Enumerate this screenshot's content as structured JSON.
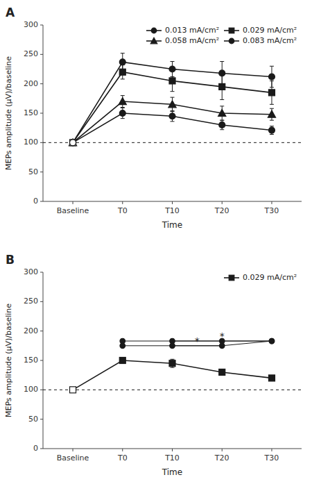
{
  "chart_data": [
    {
      "type": "line",
      "title": "A",
      "categories": [
        "Baseline",
        "T0",
        "T10",
        "T20",
        "T30"
      ],
      "series": [
        {
          "name": "0.013 mA/cm²",
          "values": [
            100,
            237,
            225,
            218,
            212
          ],
          "errors": [
            0,
            15,
            13,
            20,
            18
          ],
          "marker": "circle"
        },
        {
          "name": "0.029 mA/cm²",
          "values": [
            100,
            220,
            205,
            195,
            185
          ],
          "errors": [
            0,
            12,
            18,
            22,
            20
          ],
          "marker": "square"
        },
        {
          "name": "0.058 mA/cm²",
          "values": [
            100,
            170,
            165,
            150,
            148
          ],
          "errors": [
            0,
            10,
            12,
            12,
            10
          ],
          "marker": "triangle"
        },
        {
          "name": "0.083 mA/cm²",
          "values": [
            100,
            150,
            145,
            130,
            121
          ],
          "errors": [
            0,
            9,
            9,
            8,
            7
          ],
          "marker": "circle"
        }
      ],
      "xlabel": "Time",
      "ylabel": "MEPs amplitude (μV)/baseline",
      "ylim": [
        0,
        300
      ],
      "yticks": [
        0,
        50,
        100,
        150,
        200,
        250,
        300
      ],
      "reference_y": 100,
      "color": "#1a1a1a",
      "legend": "upper right",
      "grid": false
    },
    {
      "type": "line",
      "title": "B",
      "categories": [
        "Baseline",
        "T0",
        "T10",
        "T20",
        "T30"
      ],
      "series": [
        {
          "name": "0.029 mA/cm²",
          "values": [
            100,
            150,
            145,
            130,
            120
          ],
          "errors": [
            0,
            5,
            7,
            5,
            4
          ],
          "marker": "square"
        },
        {
          "values": [
            null,
            175,
            175,
            175,
            183
          ],
          "marker": "circle"
        },
        {
          "values": [
            null,
            183,
            183,
            183,
            183
          ],
          "marker": "circle"
        }
      ],
      "annotations": [
        {
          "text": "*",
          "x_start": "T10",
          "x_end": "T20",
          "y": 175
        },
        {
          "text": "*",
          "x_start": "T10",
          "x_end": "T30",
          "y": 183
        }
      ],
      "xlabel": "Time",
      "ylabel": "MEPs amplitude (μV)/baseline",
      "ylim": [
        0,
        300
      ],
      "yticks": [
        0,
        50,
        100,
        150,
        200,
        250,
        300
      ],
      "reference_y": 100,
      "color": "#1a1a1a",
      "legend": "upper right",
      "grid": false
    }
  ]
}
